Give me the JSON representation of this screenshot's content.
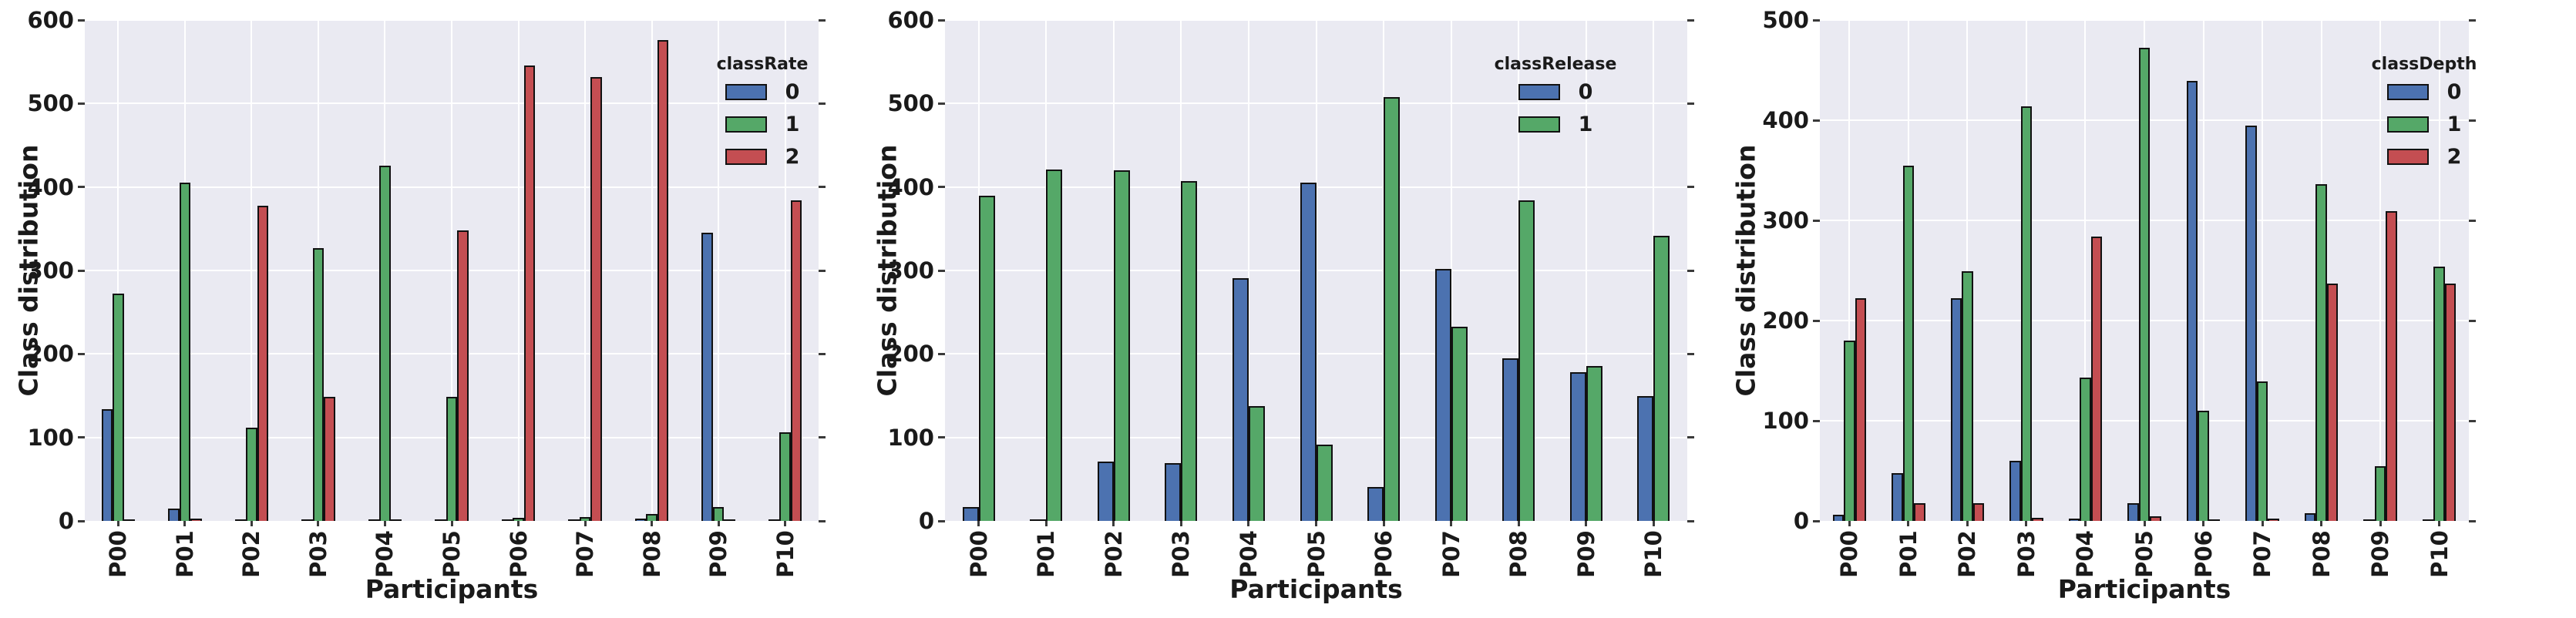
{
  "chart_data": [
    {
      "type": "bar",
      "legend_title": "classRate",
      "ylabel": "Class distribution",
      "xlabel": "Participants",
      "ylim": [
        0,
        600
      ],
      "ytick_step": 100,
      "grid": true,
      "legend_position": "upper right",
      "categories": [
        "P00",
        "P01",
        "P02",
        "P03",
        "P04",
        "P05",
        "P06",
        "P07",
        "P08",
        "P09",
        "P10"
      ],
      "series": [
        {
          "label": "0",
          "color": "blue",
          "values": [
            134,
            15,
            1,
            2,
            2,
            1,
            1,
            2,
            3,
            345,
            1
          ]
        },
        {
          "label": "1",
          "color": "green",
          "values": [
            272,
            405,
            112,
            327,
            426,
            149,
            4,
            5,
            8,
            17,
            106
          ]
        },
        {
          "label": "2",
          "color": "red",
          "values": [
            1,
            3,
            378,
            149,
            1,
            348,
            546,
            532,
            576,
            1,
            384
          ]
        }
      ]
    },
    {
      "type": "bar",
      "legend_title": "classRelease",
      "ylabel": "Class distribution",
      "xlabel": "Participants",
      "ylim": [
        0,
        600
      ],
      "ytick_step": 100,
      "grid": true,
      "legend_position": "upper right",
      "categories": [
        "P00",
        "P01",
        "P02",
        "P03",
        "P04",
        "P05",
        "P06",
        "P07",
        "P08",
        "P09",
        "P10"
      ],
      "series": [
        {
          "label": "0",
          "color": "blue",
          "values": [
            17,
            1,
            71,
            69,
            291,
            405,
            41,
            302,
            195,
            178,
            150
          ]
        },
        {
          "label": "1",
          "color": "green",
          "values": [
            390,
            421,
            420,
            407,
            138,
            91,
            508,
            233,
            384,
            186,
            342
          ]
        }
      ]
    },
    {
      "type": "bar",
      "legend_title": "classDepth",
      "ylabel": "Class distribution",
      "xlabel": "Participants",
      "ylim": [
        0,
        500
      ],
      "ytick_step": 100,
      "grid": true,
      "legend_position": "upper right",
      "categories": [
        "P00",
        "P01",
        "P02",
        "P03",
        "P04",
        "P05",
        "P06",
        "P07",
        "P08",
        "P09",
        "P10"
      ],
      "series": [
        {
          "label": "0",
          "color": "blue",
          "values": [
            6,
            48,
            222,
            60,
            2,
            18,
            439,
            395,
            8,
            1,
            1
          ]
        },
        {
          "label": "1",
          "color": "green",
          "values": [
            180,
            355,
            249,
            414,
            143,
            472,
            110,
            139,
            336,
            55,
            254
          ]
        },
        {
          "label": "2",
          "color": "red",
          "values": [
            222,
            18,
            18,
            3,
            284,
            5,
            1,
            2,
            237,
            309,
            237
          ]
        }
      ]
    }
  ],
  "palette": {
    "blue": "#4C72B0",
    "green": "#55A868",
    "red": "#C44E52"
  },
  "style": {
    "figure_bg": "#FFFFFF",
    "plot_bg": "#EAEAF2",
    "grid_color": "#FFFFFF",
    "text_color": "#1A1A1A",
    "bar_edge": "#111111"
  }
}
